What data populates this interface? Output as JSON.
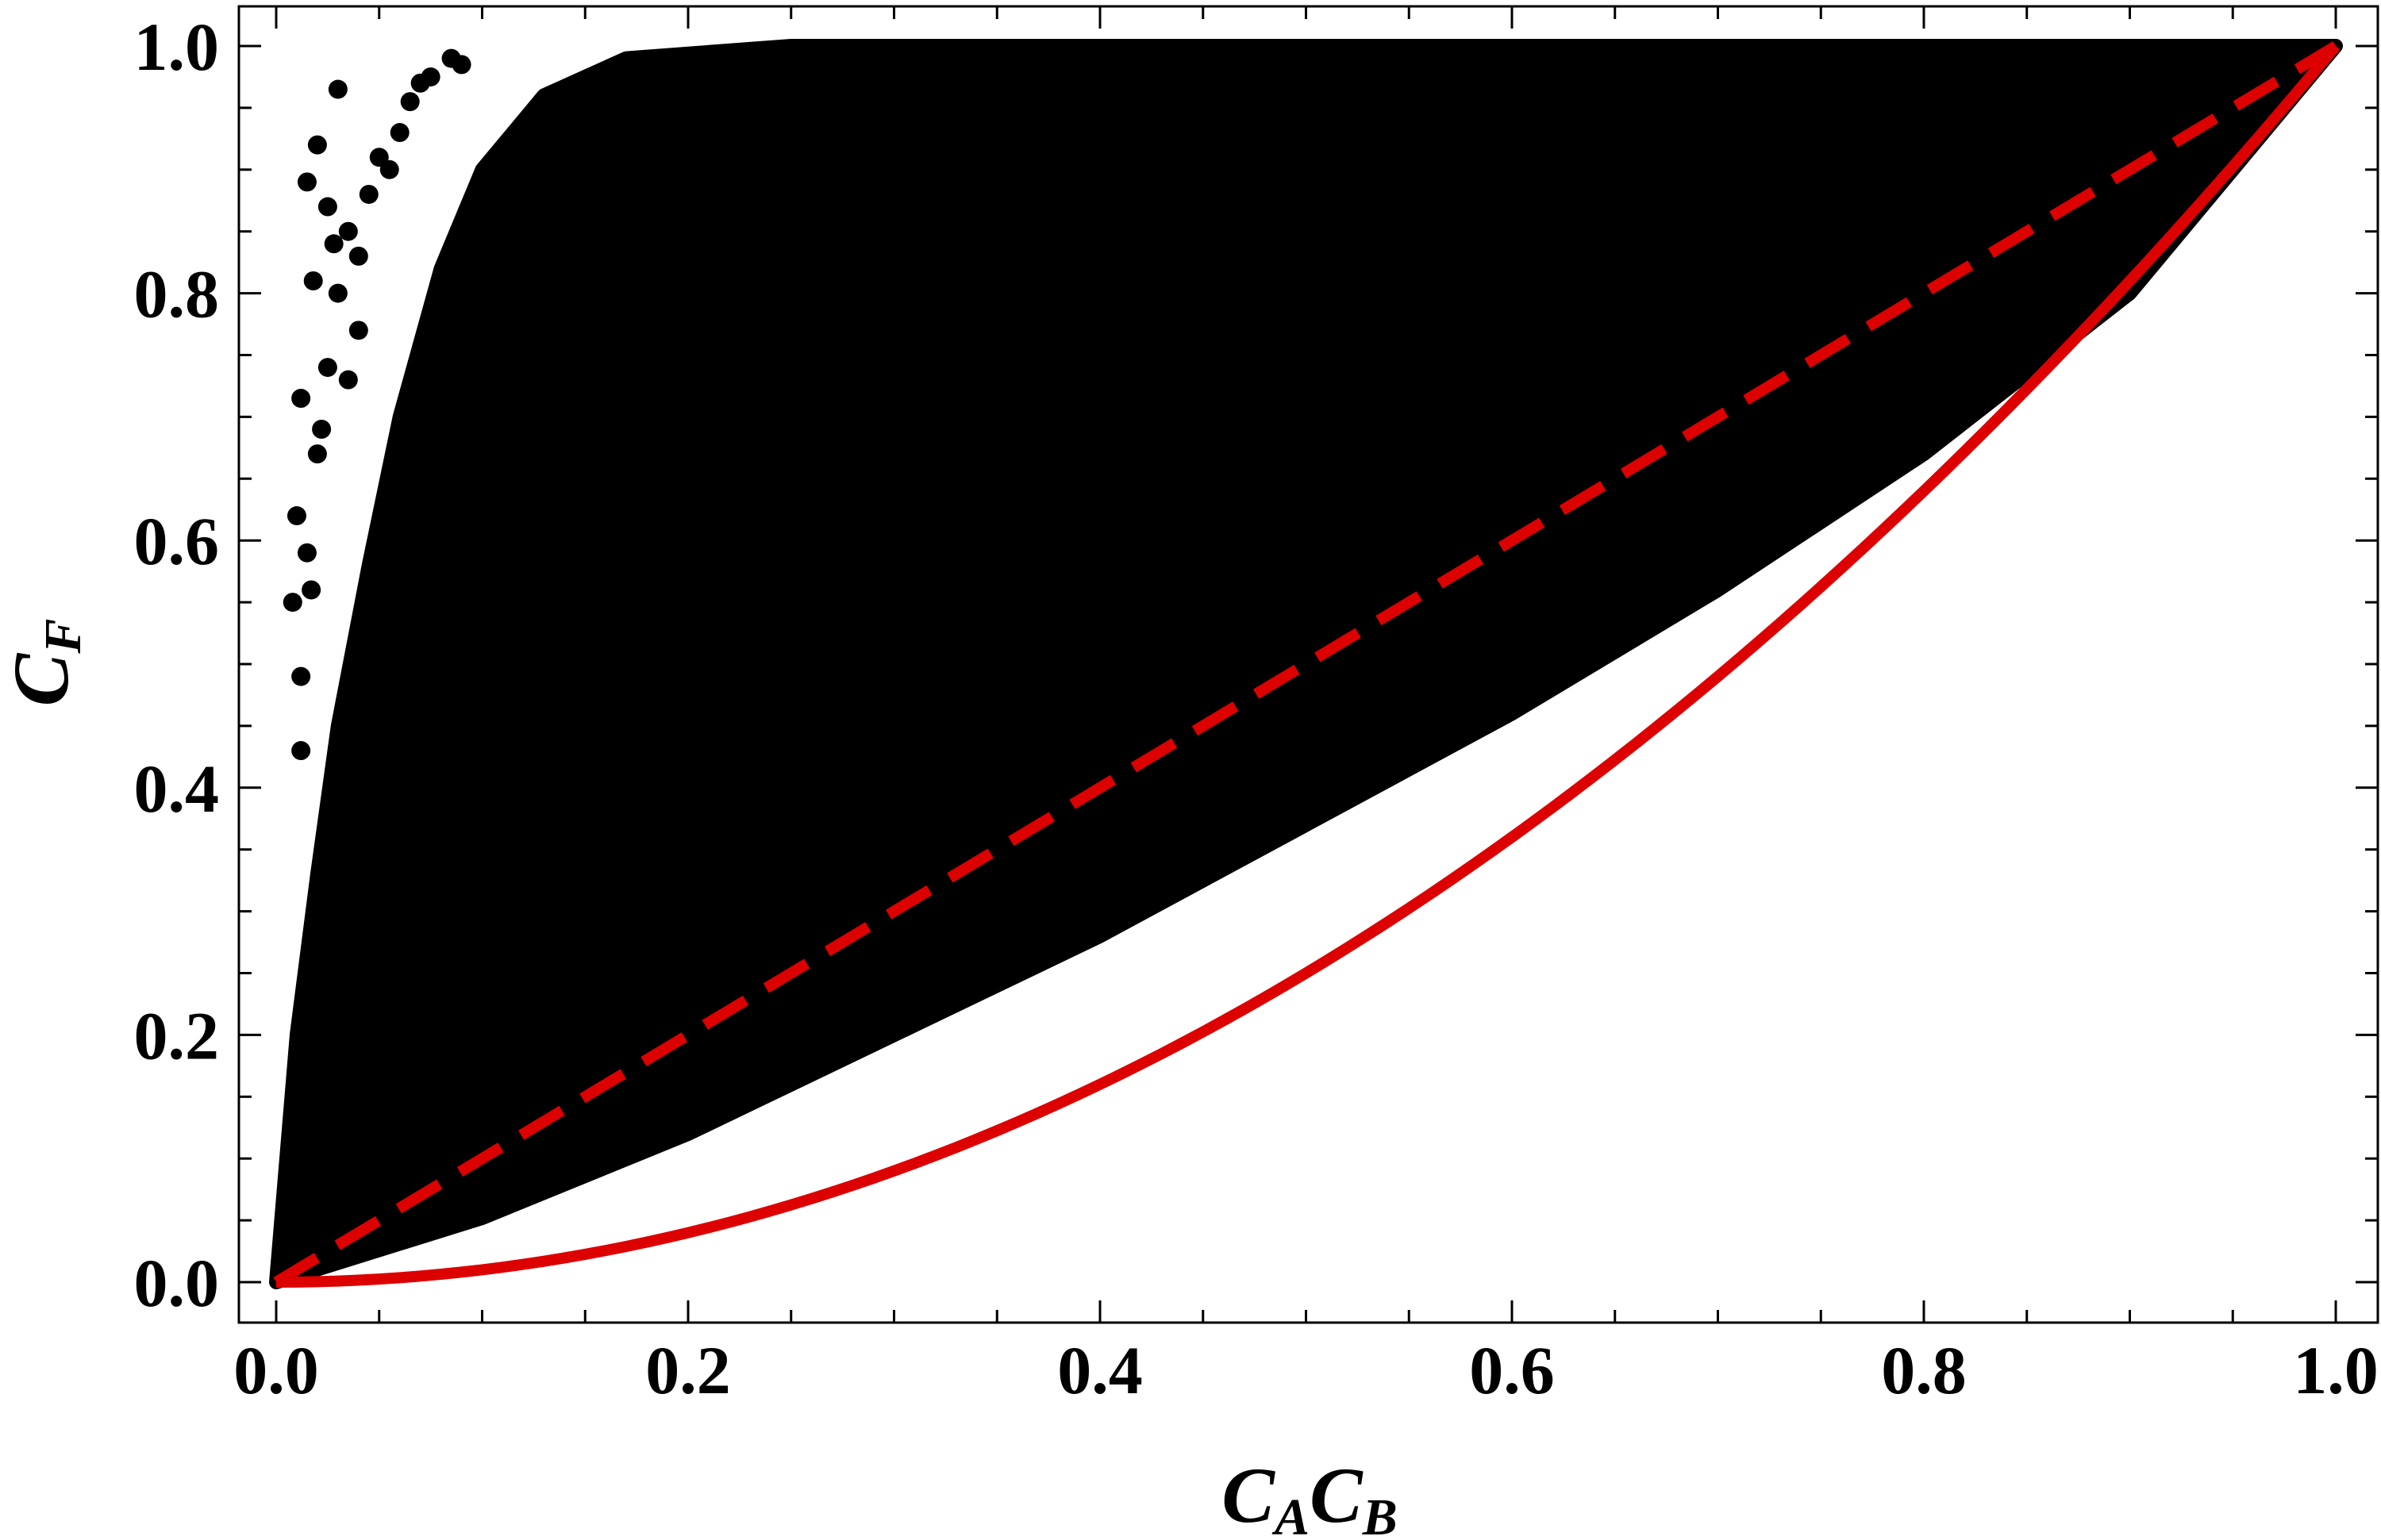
{
  "chart_data": {
    "type": "scatter",
    "title": "",
    "xlabel": {
      "base1": "C",
      "sub1": "A",
      "base2": "C",
      "sub2": "B"
    },
    "ylabel": {
      "base": "C",
      "sub": "F"
    },
    "xlim": [
      0,
      1
    ],
    "ylim": [
      0,
      1
    ],
    "x_ticks": [
      {
        "value": 0.0,
        "label": "0.0"
      },
      {
        "value": 0.2,
        "label": "0.2"
      },
      {
        "value": 0.4,
        "label": "0.4"
      },
      {
        "value": 0.6,
        "label": "0.6"
      },
      {
        "value": 0.8,
        "label": "0.8"
      },
      {
        "value": 1.0,
        "label": "1.0"
      }
    ],
    "y_ticks": [
      {
        "value": 0.0,
        "label": "0.0"
      },
      {
        "value": 0.2,
        "label": "0.2"
      },
      {
        "value": 0.4,
        "label": "0.4"
      },
      {
        "value": 0.6,
        "label": "0.6"
      },
      {
        "value": 0.8,
        "label": "0.8"
      },
      {
        "value": 1.0,
        "label": "1.0"
      }
    ],
    "minor_tick_step": 0.05,
    "grid": false,
    "legend": "none",
    "scatter_region": {
      "color": "#000000",
      "description_points_upper_envelope": [
        [
          0.0,
          0.0
        ],
        [
          0.005,
          0.1
        ],
        [
          0.01,
          0.2
        ],
        [
          0.02,
          0.33
        ],
        [
          0.03,
          0.45
        ],
        [
          0.045,
          0.58
        ],
        [
          0.06,
          0.7
        ],
        [
          0.08,
          0.82
        ],
        [
          0.1,
          0.9
        ],
        [
          0.13,
          0.96
        ],
        [
          0.17,
          0.99
        ],
        [
          0.25,
          1.0
        ],
        [
          0.6,
          1.0
        ],
        [
          1.0,
          1.0
        ]
      ],
      "lower_envelope": [
        [
          0.0,
          0.0
        ],
        [
          0.1,
          0.052
        ],
        [
          0.2,
          0.12
        ],
        [
          0.3,
          0.2
        ],
        [
          0.4,
          0.28
        ],
        [
          0.5,
          0.37
        ],
        [
          0.6,
          0.46
        ],
        [
          0.7,
          0.56
        ],
        [
          0.8,
          0.67
        ],
        [
          0.9,
          0.8
        ],
        [
          1.0,
          1.0
        ]
      ]
    },
    "stray_points": [
      [
        0.015,
        0.89
      ],
      [
        0.02,
        0.92
      ],
      [
        0.025,
        0.87
      ],
      [
        0.03,
        0.965
      ],
      [
        0.035,
        0.85
      ],
      [
        0.045,
        0.88
      ],
      [
        0.012,
        0.715
      ],
      [
        0.018,
        0.81
      ],
      [
        0.01,
        0.62
      ],
      [
        0.008,
        0.55
      ],
      [
        0.02,
        0.67
      ],
      [
        0.025,
        0.74
      ],
      [
        0.03,
        0.8
      ],
      [
        0.015,
        0.59
      ],
      [
        0.012,
        0.49
      ],
      [
        0.05,
        0.91
      ],
      [
        0.06,
        0.93
      ],
      [
        0.07,
        0.97
      ],
      [
        0.085,
        0.99
      ],
      [
        0.04,
        0.77
      ],
      [
        0.022,
        0.69
      ],
      [
        0.017,
        0.56
      ],
      [
        0.028,
        0.84
      ],
      [
        0.065,
        0.955
      ],
      [
        0.075,
        0.975
      ],
      [
        0.09,
        0.985
      ],
      [
        0.055,
        0.9
      ],
      [
        0.035,
        0.73
      ],
      [
        0.04,
        0.83
      ],
      [
        0.012,
        0.43
      ]
    ],
    "series": [
      {
        "style": "dashed",
        "color": "#dd0000",
        "x": [
          0.0,
          1.0
        ],
        "y": [
          0.0,
          1.0
        ]
      },
      {
        "style": "solid",
        "color": "#dd0000",
        "x": [
          0.0,
          0.1,
          0.2,
          0.3,
          0.4,
          0.5,
          0.6,
          0.7,
          0.8,
          0.9,
          1.0
        ],
        "y": [
          0.0,
          0.01,
          0.04,
          0.09,
          0.16,
          0.25,
          0.36,
          0.49,
          0.64,
          0.81,
          1.0
        ]
      }
    ]
  }
}
